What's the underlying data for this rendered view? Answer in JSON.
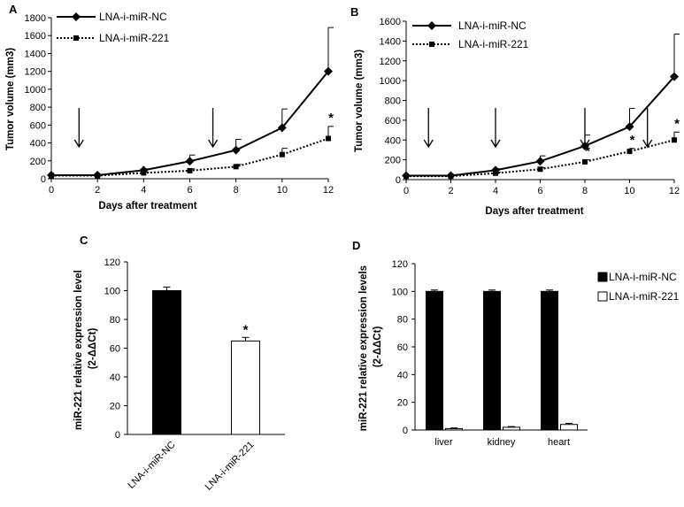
{
  "chart_data": [
    {
      "panel": "A",
      "type": "line",
      "xlabel": "Days after treatment",
      "ylabel": "Tumor volume (mm3)",
      "x": [
        0,
        2,
        4,
        6,
        8,
        10,
        12
      ],
      "xlim": [
        0,
        12
      ],
      "ylim": [
        0,
        1800
      ],
      "yticks": [
        0,
        200,
        400,
        600,
        800,
        1000,
        1200,
        1400,
        1600,
        1800
      ],
      "series": [
        {
          "name": "LNA-i-miR-NC",
          "values": [
            40,
            40,
            95,
            195,
            320,
            570,
            1200
          ],
          "errors": [
            0,
            0,
            15,
            70,
            120,
            210,
            490
          ],
          "style": "solid",
          "marker": "diamond"
        },
        {
          "name": "LNA-i-miR-221",
          "values": [
            35,
            35,
            65,
            90,
            135,
            270,
            450
          ],
          "errors": [
            0,
            0,
            10,
            20,
            25,
            70,
            135
          ],
          "style": "dotted",
          "marker": "square"
        }
      ],
      "arrows_at_x": [
        1.2,
        7
      ],
      "significance": [
        {
          "x": 12,
          "label": "*"
        }
      ]
    },
    {
      "panel": "B",
      "type": "line",
      "xlabel": "Days after treatment",
      "ylabel": "Tumor volume (mm3)",
      "x": [
        0,
        2,
        4,
        6,
        8,
        10,
        12
      ],
      "xlim": [
        0,
        12
      ],
      "ylim": [
        0,
        1600
      ],
      "yticks": [
        0,
        200,
        400,
        600,
        800,
        1000,
        1200,
        1400,
        1600
      ],
      "series": [
        {
          "name": "LNA-i-miR-NC",
          "values": [
            40,
            40,
            95,
            185,
            340,
            535,
            1040
          ],
          "errors": [
            0,
            0,
            15,
            55,
            110,
            185,
            430
          ],
          "style": "solid",
          "marker": "diamond"
        },
        {
          "name": "LNA-i-miR-221",
          "values": [
            35,
            35,
            65,
            105,
            180,
            285,
            400
          ],
          "errors": [
            0,
            0,
            10,
            15,
            20,
            30,
            80
          ],
          "style": "dotted",
          "marker": "square"
        }
      ],
      "arrows_at_x": [
        1,
        4,
        8,
        10.8
      ],
      "significance": [
        {
          "x": 8,
          "label": "*"
        },
        {
          "x": 10,
          "label": "*"
        },
        {
          "x": 12,
          "label": "*"
        }
      ]
    },
    {
      "panel": "C",
      "type": "bar",
      "ylabel": "miR-221 relative expression level (2-ΔΔCt)",
      "categories": [
        "LNA-i-miR-NC",
        "LNA-i-miR-221"
      ],
      "values": [
        100,
        65
      ],
      "errors": [
        2.5,
        2.5
      ],
      "fills": [
        "#000000",
        "#ffffff"
      ],
      "ylim": [
        0,
        120
      ],
      "yticks": [
        0,
        20,
        40,
        60,
        80,
        100,
        120
      ],
      "significance": [
        {
          "category": "LNA-i-miR-221",
          "label": "*"
        }
      ]
    },
    {
      "panel": "D",
      "type": "bar",
      "ylabel": "miR-221 relative expression levels(2-ΔΔCt)",
      "categories": [
        "liver",
        "kidney",
        "heart"
      ],
      "series": [
        {
          "name": "LNA-i-miR-NC",
          "values": [
            100,
            100,
            100
          ],
          "errors": [
            1,
            1,
            1
          ],
          "fill": "#000000"
        },
        {
          "name": "LNA-i-miR-221",
          "values": [
            1,
            2,
            4
          ],
          "errors": [
            0.5,
            0.5,
            0.8
          ],
          "fill": "#ffffff"
        }
      ],
      "ylim": [
        0,
        120
      ],
      "yticks": [
        0,
        20,
        40,
        60,
        80,
        100,
        120
      ],
      "legend_position": "right"
    }
  ]
}
